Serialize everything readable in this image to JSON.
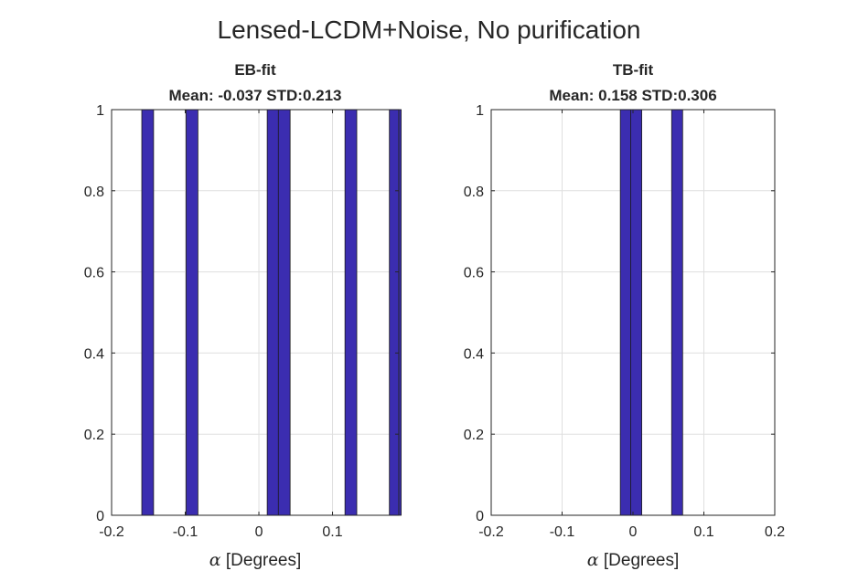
{
  "suptitle": "Lensed-LCDM+Noise, No purification",
  "chart_data": [
    {
      "type": "bar",
      "title_line1": "EB-fit",
      "title_line2": "Mean: -0.037 STD:0.213",
      "xlabel_symbol": "α",
      "xlabel_text": " [Degrees]",
      "ylabel": "",
      "xlim": [
        -0.2,
        0.19
      ],
      "ylim": [
        0,
        1
      ],
      "xticks": [
        -0.2,
        -0.1,
        0,
        0.1
      ],
      "xtick_labels": [
        "-0.2",
        "-0.1",
        "0",
        "0.1"
      ],
      "yticks": [
        0,
        0.2,
        0.4,
        0.6,
        0.8,
        1
      ],
      "ytick_labels": [
        "0",
        "0.2",
        "0.4",
        "0.6",
        "0.8",
        "1"
      ],
      "bin_width": 0.016,
      "bins": [
        {
          "center": -0.151,
          "count": 1
        },
        {
          "center": -0.0908,
          "count": 1
        },
        {
          "center": 0.0193,
          "count": 1
        },
        {
          "center": 0.0344,
          "count": 1
        },
        {
          "center": 0.1249,
          "count": 1
        },
        {
          "center": 0.1852,
          "count": 1
        }
      ],
      "grid": true,
      "bar_color": "#3b2db0"
    },
    {
      "type": "bar",
      "title_line1": "TB-fit",
      "title_line2": "Mean: 0.158 STD:0.306",
      "xlabel_symbol": "α",
      "xlabel_text": " [Degrees]",
      "ylabel": "",
      "xlim": [
        -0.2,
        0.2
      ],
      "ylim": [
        0,
        1
      ],
      "xticks": [
        -0.2,
        -0.1,
        0,
        0.1,
        0.2
      ],
      "xtick_labels": [
        "-0.2",
        "-0.1",
        "0",
        "0.1",
        "0.2"
      ],
      "yticks": [
        0,
        0.2,
        0.4,
        0.6,
        0.8,
        1
      ],
      "ytick_labels": [
        "0",
        "0.2",
        "0.4",
        "0.6",
        "0.8",
        "1"
      ],
      "bin_width": 0.0155,
      "bins": [
        {
          "center": -0.0101,
          "count": 1
        },
        {
          "center": 0.0046,
          "count": 1
        },
        {
          "center": 0.0623,
          "count": 1
        }
      ],
      "grid": true,
      "bar_color": "#3b2db0"
    }
  ]
}
